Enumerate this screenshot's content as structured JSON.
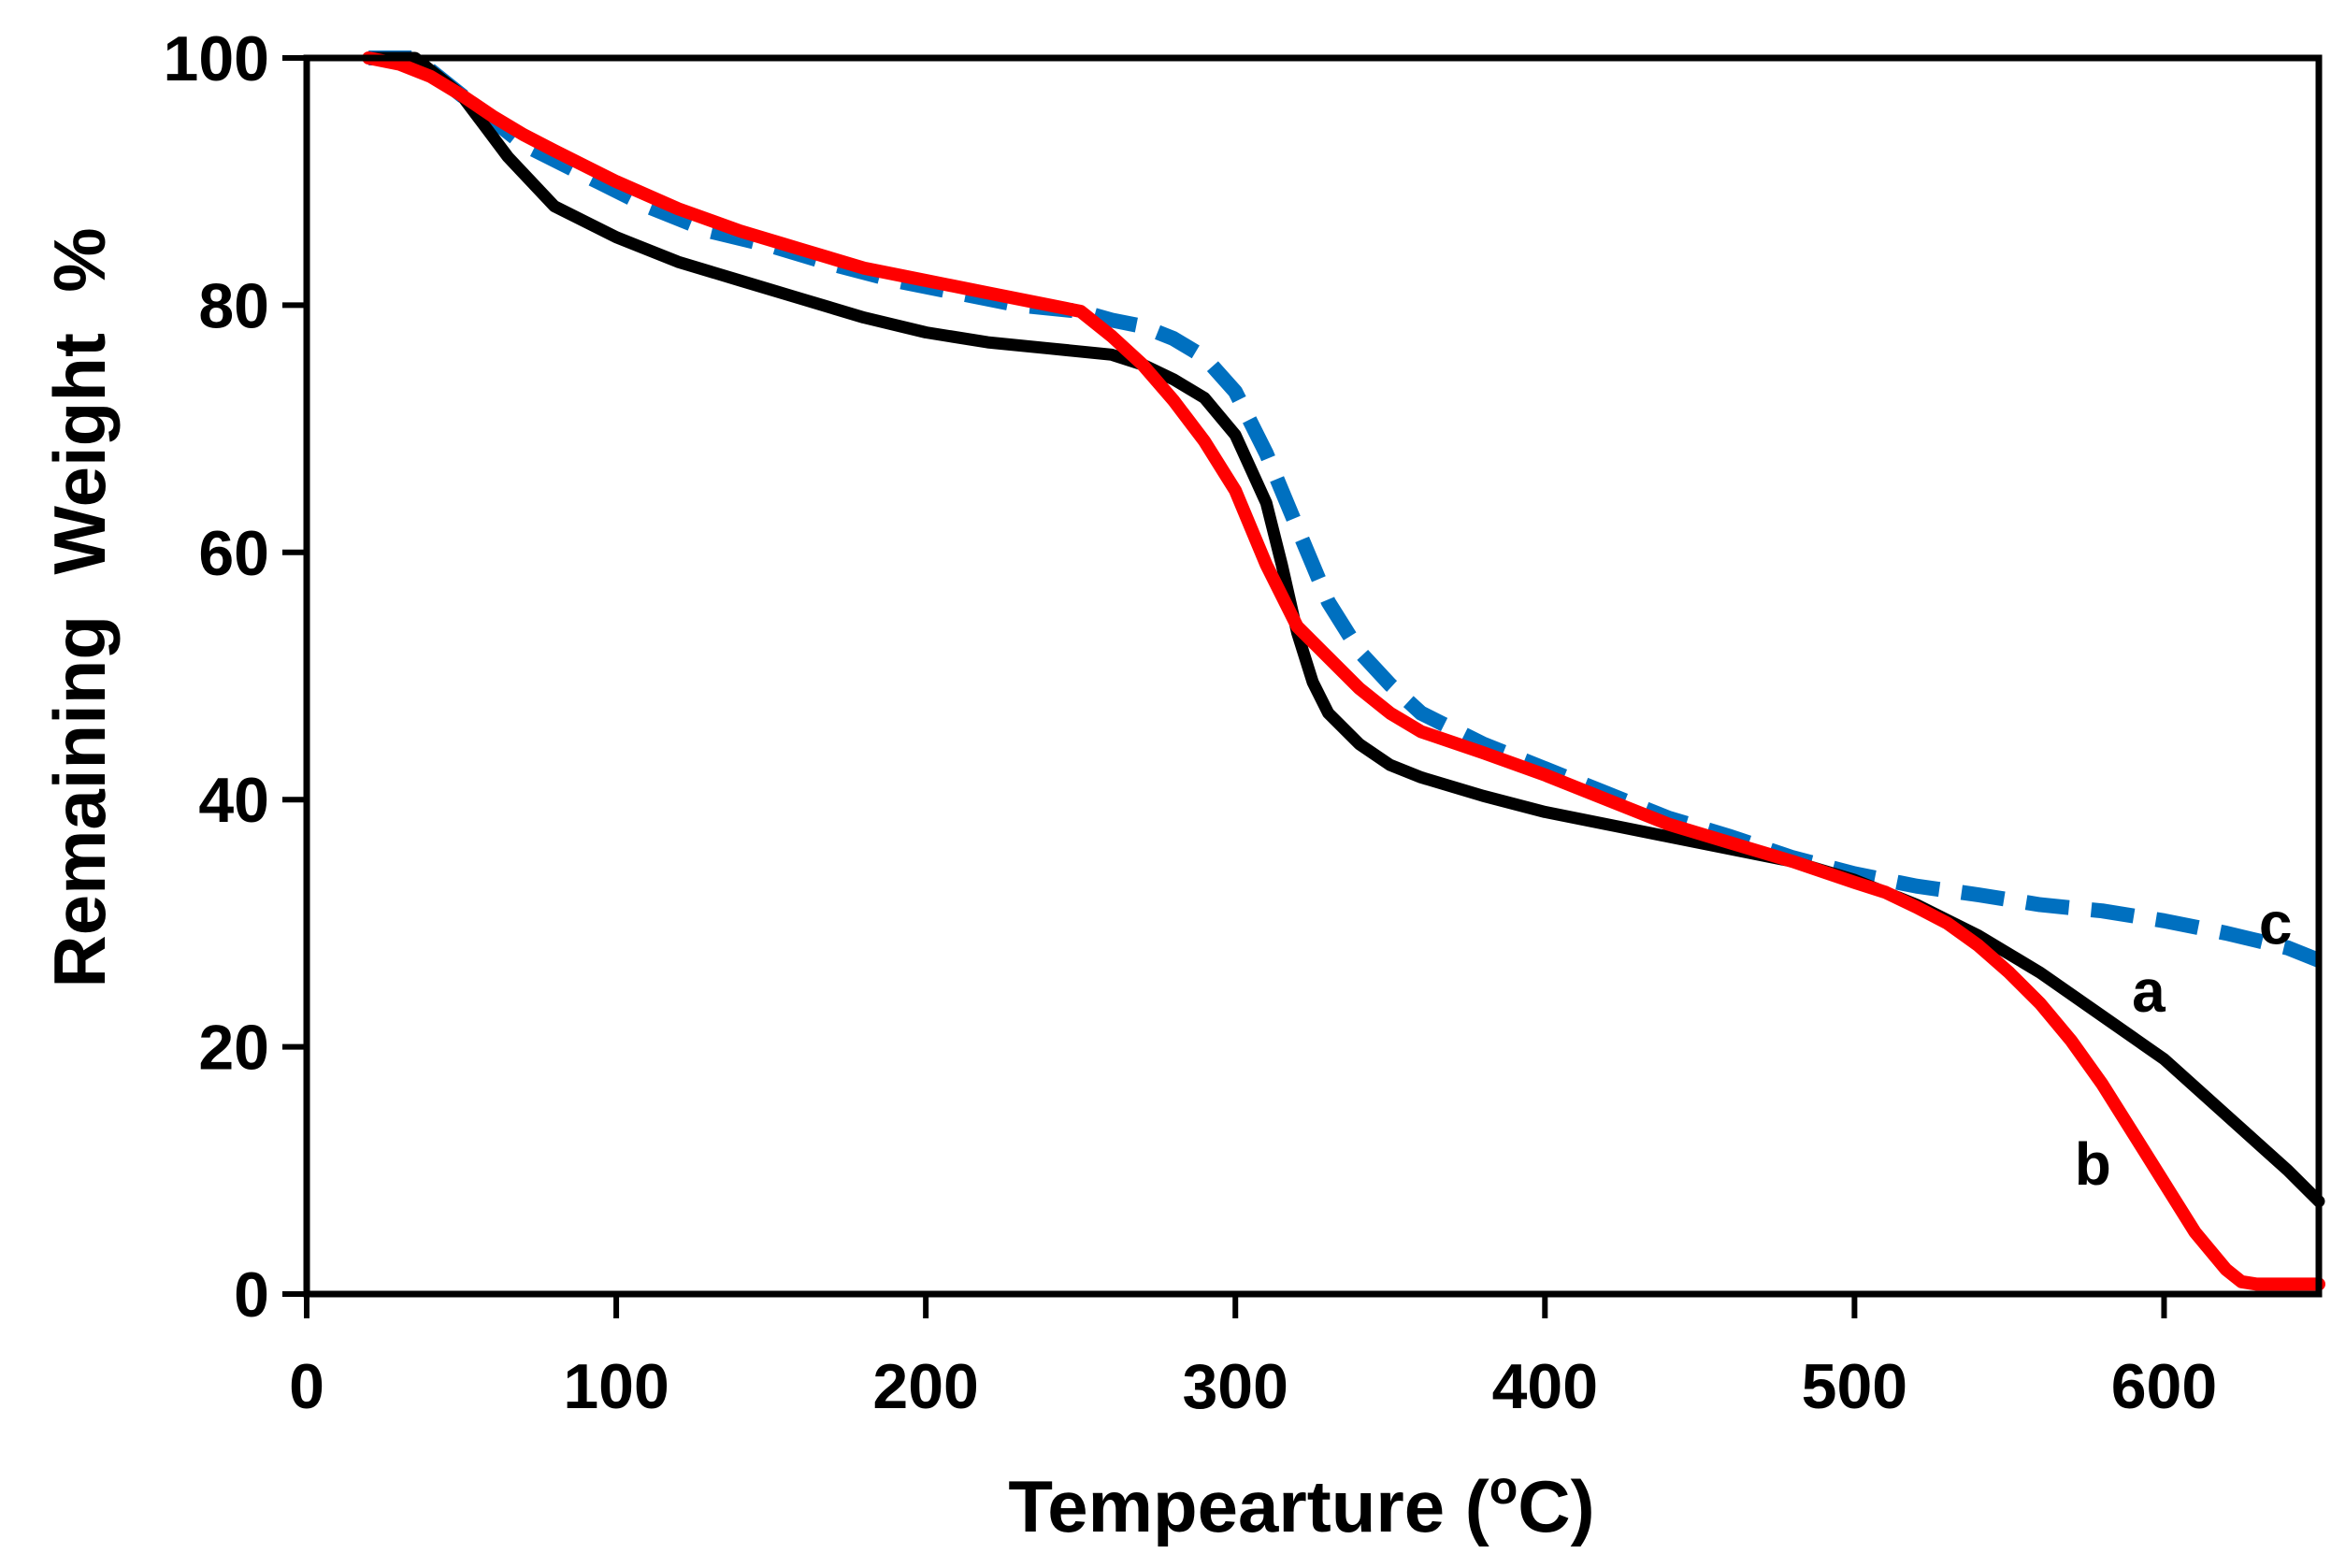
{
  "chart_data": {
    "type": "line",
    "title": "",
    "xlabel_main": "Tempearture (",
    "xlabel_sup": "o",
    "xlabel_end": "C)",
    "ylabel": "Remaining  Weight  %",
    "xlim": [
      0,
      650
    ],
    "ylim": [
      0,
      100
    ],
    "xticks": [
      0,
      100,
      200,
      300,
      400,
      500,
      600
    ],
    "yticks": [
      0,
      20,
      40,
      60,
      80,
      100
    ],
    "grid": false,
    "series": [
      {
        "name": "a",
        "label": "a",
        "color": "#000000",
        "style": "solid",
        "label_at": [
          595,
          24.5
        ],
        "x": [
          20,
          35,
          50,
          65,
          80,
          100,
          120,
          140,
          160,
          180,
          200,
          220,
          240,
          260,
          270,
          280,
          290,
          300,
          310,
          315,
          320,
          325,
          330,
          340,
          350,
          360,
          380,
          400,
          420,
          440,
          460,
          480,
          500,
          520,
          540,
          560,
          580,
          600,
          620,
          640,
          650
        ],
        "y": [
          100,
          100,
          97,
          92,
          88,
          85.5,
          83.5,
          82,
          80.5,
          79,
          77.8,
          77,
          76.5,
          76,
          75.2,
          74,
          72.5,
          69.5,
          64,
          59,
          53.5,
          49.5,
          47,
          44.5,
          42.8,
          41.8,
          40.3,
          39,
          38,
          37,
          36,
          35,
          33.5,
          31.5,
          29,
          26,
          22.5,
          19,
          14.5,
          10,
          7.5
        ]
      },
      {
        "name": "b",
        "label": "b",
        "color": "#ff0000",
        "style": "solid",
        "label_at": [
          577,
          10.5
        ],
        "x": [
          20,
          30,
          40,
          50,
          60,
          70,
          80,
          100,
          120,
          140,
          160,
          180,
          200,
          220,
          240,
          250,
          260,
          270,
          280,
          290,
          300,
          310,
          320,
          330,
          340,
          350,
          360,
          380,
          400,
          420,
          440,
          460,
          480,
          500,
          510,
          520,
          530,
          540,
          550,
          560,
          570,
          580,
          590,
          600,
          610,
          620,
          625,
          630,
          640,
          650
        ],
        "y": [
          100,
          99.5,
          98.5,
          97,
          95.3,
          93.8,
          92.5,
          90,
          87.8,
          86,
          84.5,
          83,
          82,
          81,
          80,
          79.5,
          77.5,
          75.2,
          72.3,
          69,
          65,
          59,
          54,
          51.5,
          49,
          47,
          45.5,
          43.8,
          42,
          40,
          38,
          36.5,
          35,
          33.3,
          32.5,
          31.3,
          30,
          28.2,
          26,
          23.5,
          20.5,
          17,
          13,
          9,
          5,
          2,
          1,
          0.8,
          0.8,
          0.8
        ]
      },
      {
        "name": "c",
        "label": "c",
        "color": "#0070c0",
        "style": "dashed",
        "label_at": [
          636,
          30
        ],
        "x": [
          20,
          35,
          50,
          70,
          90,
          110,
          130,
          150,
          170,
          190,
          210,
          230,
          250,
          260,
          270,
          280,
          290,
          300,
          310,
          320,
          330,
          340,
          350,
          360,
          380,
          400,
          420,
          440,
          460,
          480,
          500,
          520,
          540,
          560,
          580,
          600,
          620,
          640,
          650
        ],
        "y": [
          100,
          100,
          97,
          93,
          90.5,
          88,
          86,
          84.8,
          83.3,
          82,
          81,
          80,
          79.5,
          78.8,
          78.3,
          77.3,
          75.8,
          73,
          68,
          62,
          56,
          52,
          49.3,
          47,
          44.5,
          42.5,
          40.5,
          38.5,
          37,
          35.3,
          34,
          33,
          32.3,
          31.5,
          31,
          30.2,
          29.2,
          28,
          27
        ]
      }
    ]
  }
}
